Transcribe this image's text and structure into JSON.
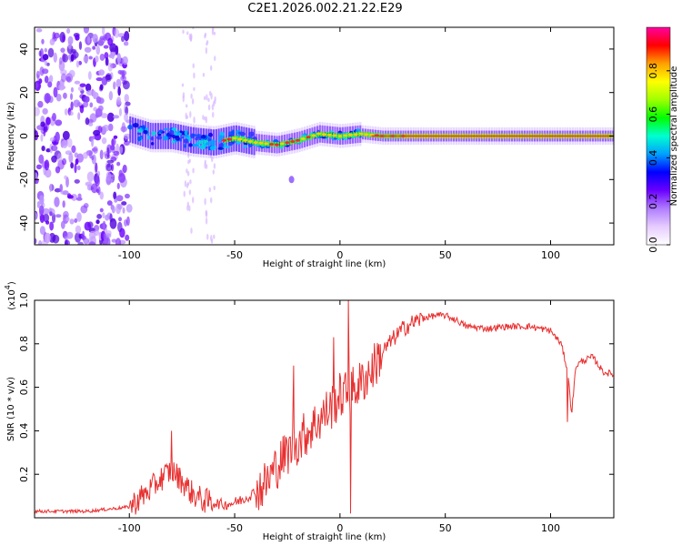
{
  "title": "C2E1.2026.002.21.22.E29",
  "chart_data": [
    {
      "type": "heatmap",
      "title": "C2E1.2026.002.21.22.E29",
      "xlabel": "Height of straight line (km)",
      "ylabel": "Frequency (Hz)",
      "xlim": [
        -145,
        130
      ],
      "ylim": [
        -50,
        50
      ],
      "xticks": [
        -100,
        -50,
        0,
        50,
        100
      ],
      "yticks": [
        -40,
        -20,
        0,
        20,
        40
      ],
      "colorbar": {
        "label": "Normalized spectral amplitude",
        "range": [
          0,
          1
        ],
        "ticks": [
          "0.0",
          "0.2",
          "0.4",
          "0.6",
          "0.8"
        ],
        "tick_values": [
          0.0,
          0.2,
          0.4,
          0.6,
          0.8
        ],
        "colormap": [
          "#ffffff",
          "#e6ccff",
          "#b07cff",
          "#6a00ff",
          "#0000ff",
          "#00a0ff",
          "#00ffd0",
          "#00ff00",
          "#a0ff00",
          "#ffff00",
          "#ffa000",
          "#ff0000",
          "#ff00a0"
        ]
      },
      "ridge": {
        "x": [
          -100,
          -90,
          -80,
          -70,
          -60,
          -50,
          -40,
          -30,
          -20,
          -10,
          0,
          10,
          20,
          40,
          60,
          80,
          100,
          130
        ],
        "y": [
          3,
          0,
          0,
          -2,
          -3,
          -1,
          -3,
          -4,
          -2,
          1,
          0,
          1,
          0,
          0,
          0,
          0,
          0,
          0
        ]
      }
    },
    {
      "type": "line",
      "xlabel": "Height of straight line (km)",
      "ylabel": "SNR (10 * v/v)",
      "yscale_label": "(x10",
      "yscale_exp": "4",
      "xlim": [
        -145,
        130
      ],
      "ylim": [
        0,
        1.0
      ],
      "xticks": [
        -100,
        -50,
        0,
        50,
        100
      ],
      "yticks": [
        0.2,
        0.4,
        0.6,
        0.8,
        1.0
      ],
      "yticklabels": [
        "0.2",
        "0.4",
        "0.6",
        "0.8",
        "1.0"
      ],
      "color": "#e83030",
      "x": [
        -145,
        -130,
        -120,
        -110,
        -100,
        -95,
        -90,
        -85,
        -80,
        -75,
        -70,
        -65,
        -60,
        -55,
        -50,
        -45,
        -40,
        -35,
        -30,
        -25,
        -20,
        -15,
        -10,
        -5,
        0,
        5,
        10,
        15,
        20,
        25,
        30,
        35,
        40,
        45,
        50,
        55,
        60,
        70,
        80,
        90,
        100,
        105,
        108,
        110,
        112,
        115,
        120,
        125,
        130
      ],
      "values": [
        0.03,
        0.03,
        0.03,
        0.04,
        0.05,
        0.09,
        0.13,
        0.18,
        0.22,
        0.17,
        0.11,
        0.08,
        0.07,
        0.06,
        0.07,
        0.09,
        0.12,
        0.16,
        0.24,
        0.3,
        0.35,
        0.4,
        0.45,
        0.5,
        0.56,
        0.58,
        0.62,
        0.68,
        0.76,
        0.82,
        0.87,
        0.9,
        0.92,
        0.93,
        0.93,
        0.91,
        0.88,
        0.87,
        0.88,
        0.88,
        0.86,
        0.8,
        0.68,
        0.48,
        0.7,
        0.72,
        0.74,
        0.67,
        0.66
      ],
      "spikes": [
        [
          -80,
          0.4
        ],
        [
          -22,
          0.7
        ],
        [
          -3,
          0.83
        ],
        [
          4,
          1.0
        ],
        [
          5,
          0.02
        ],
        [
          108,
          0.44
        ]
      ]
    }
  ]
}
